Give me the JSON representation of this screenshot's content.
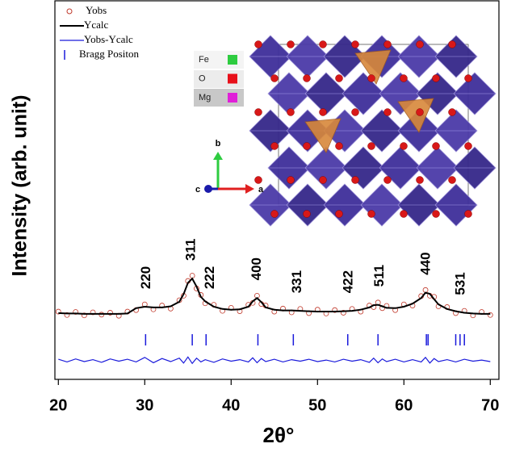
{
  "chart_data": {
    "type": "line",
    "x_label": "2θ°",
    "y_label": "Intensity (arb. unit)",
    "xlim": [
      19.6,
      71
    ],
    "xticks": [
      20,
      30,
      40,
      50,
      60,
      70
    ],
    "ylim": [
      0,
      100
    ],
    "legend": "upper left",
    "x": [
      20,
      21,
      22,
      23,
      24,
      25,
      26,
      27,
      28,
      29,
      30,
      31,
      32,
      33,
      34,
      34.5,
      35,
      35.5,
      36,
      36.5,
      37,
      38,
      39,
      40,
      41,
      42,
      42.5,
      43,
      43.5,
      44,
      45,
      46,
      47,
      48,
      49,
      50,
      51,
      52,
      53,
      54,
      55,
      56,
      56.5,
      57,
      57.5,
      58,
      59,
      60,
      61,
      62,
      62.5,
      63,
      63.5,
      64,
      65,
      66,
      67,
      68,
      69,
      70
    ],
    "series": [
      {
        "name": "Yobs",
        "color": "#c0392b",
        "marker": "open-circle",
        "values": [
          17.9,
          17.0,
          17.8,
          16.9,
          17.7,
          17.1,
          17.6,
          16.8,
          17.9,
          18.3,
          19.8,
          18.5,
          19.5,
          18.7,
          20.9,
          22.1,
          26.0,
          27.4,
          24.0,
          22.3,
          20.1,
          19.7,
          18.1,
          18.9,
          18.0,
          19.7,
          20.2,
          22.1,
          19.9,
          19.5,
          17.9,
          18.7,
          17.7,
          18.6,
          17.5,
          18.4,
          17.4,
          18.3,
          17.6,
          18.6,
          17.9,
          19.5,
          19.1,
          20.3,
          18.8,
          19.4,
          18.3,
          19.8,
          19.5,
          22.0,
          23.6,
          22.1,
          21.8,
          19.3,
          19.1,
          17.5,
          18.1,
          16.9,
          17.8,
          17.0
        ]
      },
      {
        "name": "Ycalc",
        "color": "#000000",
        "values": [
          17.5,
          17.4,
          17.4,
          17.3,
          17.3,
          17.3,
          17.3,
          17.3,
          17.4,
          18.8,
          19.2,
          19.0,
          19.0,
          19.3,
          20.5,
          22.5,
          25.5,
          26.6,
          24.5,
          21.8,
          20.6,
          19.2,
          18.6,
          18.4,
          18.5,
          19.2,
          20.6,
          21.5,
          20.4,
          19.0,
          18.4,
          18.2,
          18.2,
          18.1,
          18.0,
          17.9,
          17.9,
          17.9,
          18.0,
          18.1,
          18.4,
          19.0,
          19.6,
          19.7,
          19.3,
          18.9,
          18.8,
          19.2,
          20.0,
          21.5,
          22.9,
          22.6,
          21.2,
          19.8,
          18.6,
          18.0,
          17.6,
          17.4,
          17.3,
          17.3
        ]
      },
      {
        "name": "Yobs-Ycalc",
        "color": "#1a1adb",
        "values": [
          5.3,
          4.6,
          5.4,
          4.7,
          5.2,
          4.5,
          5.4,
          4.8,
          5.3,
          4.6,
          5.8,
          4.4,
          5.5,
          4.7,
          5.6,
          4.3,
          5.9,
          4.2,
          5.6,
          4.6,
          5.2,
          4.5,
          5.4,
          4.8,
          5.2,
          4.6,
          5.7,
          4.4,
          5.5,
          4.7,
          5.3,
          4.6,
          5.2,
          4.8,
          5.3,
          4.7,
          5.1,
          4.6,
          5.3,
          4.8,
          5.2,
          4.5,
          5.6,
          4.4,
          5.4,
          4.7,
          5.3,
          4.6,
          5.2,
          4.6,
          5.8,
          4.3,
          5.5,
          4.7,
          5.2,
          4.6,
          5.3,
          4.8,
          5.1,
          4.7
        ]
      }
    ],
    "bragg": {
      "name": "Bragg Positon",
      "color": "#1a1adb",
      "x": [
        30.1,
        35.5,
        37.1,
        43.1,
        47.2,
        53.5,
        57.0,
        62.6,
        62.8,
        66.0,
        66.5,
        67.0
      ]
    },
    "annotations": [
      {
        "text": "220",
        "x": 30.2
      },
      {
        "text": "311",
        "x": 35.4
      },
      {
        "text": "222",
        "x": 37.6
      },
      {
        "text": "400",
        "x": 43.0
      },
      {
        "text": "331",
        "x": 47.7
      },
      {
        "text": "422",
        "x": 53.6
      },
      {
        "text": "511",
        "x": 57.2
      },
      {
        "text": "440",
        "x": 62.6
      },
      {
        "text": "531",
        "x": 66.6
      }
    ],
    "inset": {
      "legend": [
        {
          "label": "Fe",
          "color": "#2ecc40"
        },
        {
          "label": "O",
          "color": "#e8101a"
        },
        {
          "label": "Mg",
          "color": "#e020d8"
        }
      ],
      "axes": [
        "a",
        "b",
        "c"
      ]
    }
  }
}
